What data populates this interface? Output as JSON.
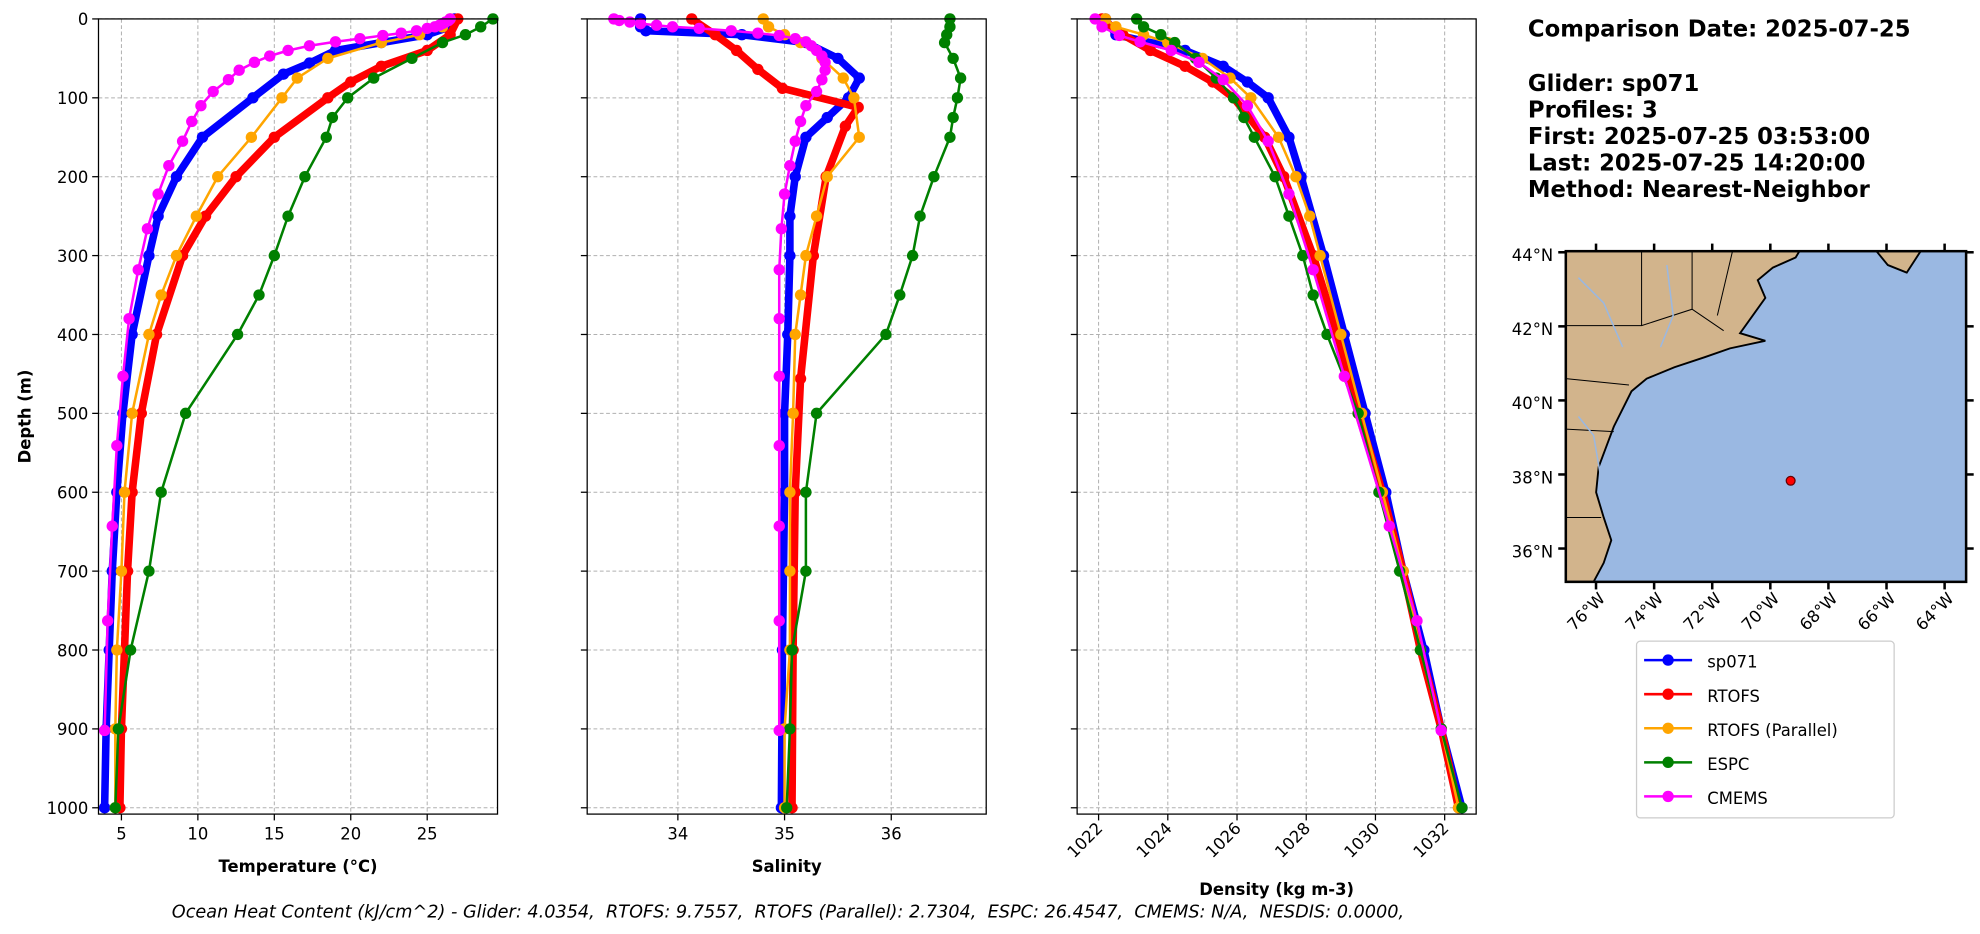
{
  "chart_data": [
    {
      "type": "line",
      "xlabel": "Temperature (°C)",
      "ylabel": "Depth (m)",
      "xlim": [
        3.5,
        29.6
      ],
      "xticks": [
        5,
        10,
        15,
        20,
        25
      ],
      "ylim": [
        0,
        1008
      ],
      "invert_y": true,
      "yticks": [
        0,
        100,
        200,
        300,
        400,
        500,
        600,
        700,
        800,
        900,
        1000
      ],
      "grid": true,
      "series": [
        {
          "name": "sp071",
          "color": "#0000ff",
          "linewidth": 6,
          "depth": [
            0,
            10,
            20,
            30,
            40,
            56,
            70,
            100,
            150,
            200,
            250,
            300,
            400,
            500,
            600,
            700,
            800,
            900,
            1000
          ],
          "values": [
            26.8,
            26.5,
            25,
            22,
            19,
            17.3,
            15.6,
            13.6,
            10.3,
            8.6,
            7.4,
            6.8,
            5.7,
            5.1,
            4.7,
            4.4,
            4.2,
            4.0,
            3.9
          ]
        },
        {
          "name": "RTOFS",
          "color": "#ff0000",
          "linewidth": 6,
          "depth": [
            0,
            20,
            40,
            60,
            80,
            100,
            150,
            200,
            250,
            300,
            400,
            500,
            600,
            700,
            800,
            900,
            1000
          ],
          "values": [
            27,
            26.5,
            25,
            22,
            20,
            18.5,
            15,
            12.5,
            10.5,
            9,
            7.3,
            6.3,
            5.7,
            5.4,
            5.2,
            5.0,
            4.9
          ]
        },
        {
          "name": "RTOFS (Parallel)",
          "color": "#ffa500",
          "linewidth": 2,
          "depth": [
            0,
            10,
            20,
            30,
            50,
            75,
            100,
            150,
            200,
            250,
            300,
            350,
            400,
            500,
            600,
            700,
            800,
            900,
            1000
          ],
          "values": [
            26.5,
            26,
            24.5,
            22,
            18.5,
            16.5,
            15.5,
            13.5,
            11.3,
            9.9,
            8.6,
            7.6,
            6.8,
            5.7,
            5.2,
            5.0,
            4.7,
            4.6,
            4.6
          ]
        },
        {
          "name": "ESPC",
          "color": "#008000",
          "linewidth": 2,
          "depth": [
            0,
            10,
            20,
            30,
            50,
            75,
            100,
            125,
            150,
            200,
            250,
            300,
            350,
            400,
            500,
            600,
            700,
            800,
            900,
            1000
          ],
          "values": [
            29.3,
            28.5,
            27.5,
            26,
            24,
            21.5,
            19.8,
            18.8,
            18.4,
            17,
            15.9,
            15,
            14,
            12.6,
            9.2,
            7.6,
            6.8,
            5.6,
            4.8,
            4.6
          ]
        },
        {
          "name": "CMEMS",
          "color": "#ff00ff",
          "linewidth": 2,
          "depth": [
            0,
            2,
            4,
            6,
            8,
            10,
            12,
            15,
            18,
            21,
            25,
            29,
            34,
            40,
            47,
            55,
            65,
            77,
            92,
            110,
            130,
            155,
            186,
            222,
            266,
            318,
            380,
            453,
            541,
            643,
            763,
            902
          ],
          "values": [
            26.5,
            26.4,
            26.2,
            26,
            25.8,
            25.5,
            25,
            24.3,
            23.3,
            22.1,
            20.6,
            19,
            17.3,
            15.9,
            14.7,
            13.7,
            12.7,
            12,
            11,
            10.2,
            9.6,
            9,
            8.1,
            7.4,
            6.7,
            6.1,
            5.5,
            5.1,
            4.7,
            4.4,
            4.1,
            3.9
          ]
        }
      ]
    },
    {
      "type": "line",
      "xlabel": "Salinity",
      "xlim": [
        33.15,
        36.89
      ],
      "xticks": [
        34,
        35,
        36
      ],
      "ylim": [
        0,
        1008
      ],
      "invert_y": true,
      "yticks": [
        0,
        100,
        200,
        300,
        400,
        500,
        600,
        700,
        800,
        900,
        1000
      ],
      "grid": true,
      "series": [
        {
          "color": "#0000ff",
          "linewidth": 6,
          "depth": [
            0,
            10,
            15,
            20,
            30,
            50,
            75,
            100,
            125,
            150,
            200,
            250,
            300,
            400,
            500,
            600,
            800,
            1000
          ],
          "values": [
            33.65,
            33.65,
            33.7,
            34.6,
            35.2,
            35.5,
            35.7,
            35.6,
            35.4,
            35.2,
            35.1,
            35.05,
            35.05,
            35.03,
            35.0,
            35.0,
            34.98,
            34.97
          ]
        },
        {
          "color": "#ff0000",
          "linewidth": 6,
          "depth": [
            0,
            20,
            40,
            64,
            88,
            112,
            136,
            200,
            300,
            456,
            600,
            800,
            1000
          ],
          "values": [
            34.13,
            34.35,
            34.55,
            34.75,
            34.98,
            35.69,
            35.57,
            35.39,
            35.27,
            35.15,
            35.1,
            35.08,
            35.07
          ]
        },
        {
          "color": "#ffa500",
          "linewidth": 2,
          "depth": [
            0,
            10,
            20,
            30,
            50,
            75,
            100,
            150,
            200,
            250,
            300,
            350,
            400,
            500,
            600,
            700,
            800,
            900,
            1000
          ],
          "values": [
            34.8,
            34.85,
            35.0,
            35.15,
            35.35,
            35.55,
            35.65,
            35.7,
            35.4,
            35.3,
            35.2,
            35.15,
            35.1,
            35.08,
            35.05,
            35.05,
            35.05,
            35.0,
            35.0
          ]
        },
        {
          "color": "#008000",
          "linewidth": 2,
          "depth": [
            0,
            10,
            20,
            30,
            50,
            75,
            100,
            125,
            150,
            200,
            250,
            300,
            350,
            400,
            500,
            600,
            700,
            800,
            900,
            1000
          ],
          "values": [
            36.55,
            36.55,
            36.52,
            36.5,
            36.58,
            36.65,
            36.62,
            36.58,
            36.55,
            36.4,
            36.27,
            36.2,
            36.08,
            35.95,
            35.3,
            35.2,
            35.2,
            35.07,
            35.05,
            35.02
          ]
        },
        {
          "color": "#ff00ff",
          "linewidth": 2,
          "depth": [
            0,
            2,
            4,
            6,
            8,
            10,
            12,
            15,
            18,
            21,
            25,
            29,
            34,
            40,
            47,
            55,
            65,
            77,
            92,
            110,
            130,
            155,
            186,
            222,
            266,
            318,
            380,
            453,
            541,
            643,
            763,
            902
          ],
          "values": [
            33.4,
            33.45,
            33.55,
            33.65,
            33.8,
            33.95,
            34.2,
            34.5,
            34.75,
            34.95,
            35.1,
            35.2,
            35.25,
            35.3,
            35.35,
            35.38,
            35.38,
            35.35,
            35.3,
            35.2,
            35.15,
            35.1,
            35.05,
            35.0,
            34.97,
            34.95,
            34.95,
            34.95,
            34.95,
            34.95,
            34.95,
            34.95
          ]
        }
      ]
    },
    {
      "type": "line",
      "xlabel": "Density (kg m-3)",
      "xtick_rotation": 45,
      "xlim": [
        1021.38,
        1032.91
      ],
      "xticks": [
        1022,
        1024,
        1026,
        1028,
        1030,
        1032
      ],
      "ylim": [
        0,
        1008
      ],
      "invert_y": true,
      "yticks": [
        0,
        100,
        200,
        300,
        400,
        500,
        600,
        700,
        800,
        900,
        1000
      ],
      "grid": true,
      "series": [
        {
          "color": "#0000ff",
          "linewidth": 6,
          "depth": [
            0,
            20,
            40,
            60,
            80,
            100,
            150,
            200,
            300,
            400,
            500,
            600,
            700,
            800,
            900,
            1000
          ],
          "values": [
            1022.2,
            1022.5,
            1024.5,
            1025.6,
            1026.3,
            1026.9,
            1027.5,
            1027.85,
            1028.5,
            1029.1,
            1029.7,
            1030.3,
            1030.8,
            1031.4,
            1031.9,
            1032.5
          ]
        },
        {
          "color": "#ff0000",
          "linewidth": 6,
          "depth": [
            0,
            20,
            40,
            60,
            80,
            100,
            150,
            200,
            300,
            400,
            500,
            600,
            700,
            800,
            900,
            1000
          ],
          "values": [
            1022.1,
            1022.7,
            1023.5,
            1024.5,
            1025.3,
            1025.9,
            1026.8,
            1027.35,
            1028.2,
            1028.9,
            1029.5,
            1030.2,
            1030.8,
            1031.3,
            1031.9,
            1032.4
          ]
        },
        {
          "color": "#ffa500",
          "linewidth": 2,
          "depth": [
            0,
            10,
            20,
            30,
            50,
            75,
            100,
            150,
            200,
            250,
            300,
            400,
            500,
            600,
            700,
            800,
            900,
            1000
          ],
          "values": [
            1022.2,
            1022.5,
            1023.3,
            1024,
            1025,
            1025.8,
            1026.4,
            1027.2,
            1027.7,
            1028.1,
            1028.4,
            1029.0,
            1029.6,
            1030.2,
            1030.8,
            1031.3,
            1031.9,
            1032.4
          ]
        },
        {
          "color": "#008000",
          "linewidth": 2,
          "depth": [
            0,
            10,
            20,
            30,
            50,
            75,
            100,
            125,
            150,
            200,
            250,
            300,
            350,
            400,
            500,
            600,
            700,
            800,
            900,
            1000
          ],
          "values": [
            1023.1,
            1023.3,
            1023.8,
            1024.2,
            1024.8,
            1025.4,
            1025.9,
            1026.2,
            1026.5,
            1027.1,
            1027.5,
            1027.9,
            1028.2,
            1028.6,
            1029.5,
            1030.1,
            1030.7,
            1031.3,
            1031.9,
            1032.5
          ]
        },
        {
          "color": "#ff00ff",
          "linewidth": 2,
          "depth": [
            0,
            10,
            21,
            29,
            40,
            55,
            77,
            110,
            155,
            222,
            318,
            453,
            643,
            763,
            902
          ],
          "values": [
            1021.9,
            1022.1,
            1022.6,
            1023.2,
            1024.1,
            1024.9,
            1025.6,
            1026.3,
            1026.9,
            1027.5,
            1028.2,
            1029.1,
            1030.4,
            1031.2,
            1031.9
          ]
        }
      ]
    },
    {
      "type": "map",
      "xlim": [
        -77.04,
        -63.26
      ],
      "xticks": [
        {
          "value": -76,
          "label": "76°W"
        },
        {
          "value": -74,
          "label": "74°W"
        },
        {
          "value": -72,
          "label": "72°W"
        },
        {
          "value": -70,
          "label": "70°W"
        },
        {
          "value": -68,
          "label": "68°W"
        },
        {
          "value": -66,
          "label": "66°W"
        },
        {
          "value": -64,
          "label": "64°W"
        }
      ],
      "ylim": [
        35.1,
        44.03
      ],
      "yticks": [
        {
          "value": 36,
          "label": "36°N"
        },
        {
          "value": 38,
          "label": "38°N"
        },
        {
          "value": 40,
          "label": "40°N"
        },
        {
          "value": 42,
          "label": "42°N"
        },
        {
          "value": 44,
          "label": "44°N"
        }
      ],
      "marker": {
        "lon": -69.3,
        "lat": 37.83,
        "color": "#ff0000"
      }
    }
  ],
  "info": [
    "Comparison Date: 2025-07-25",
    "Glider: sp071",
    "Profiles: 3",
    "First: 2025-07-25 03:53:00",
    "Last: 2025-07-25 14:20:00",
    "Method: Nearest-Neighbor"
  ],
  "footer": "Ocean Heat Content (kJ/cm^2) - Glider: 4.0354,  RTOFS: 9.7557,  RTOFS (Parallel): 2.7304,  ESPC: 26.4547,  CMEMS: N/A,  NESDIS: 0.0000,"
}
